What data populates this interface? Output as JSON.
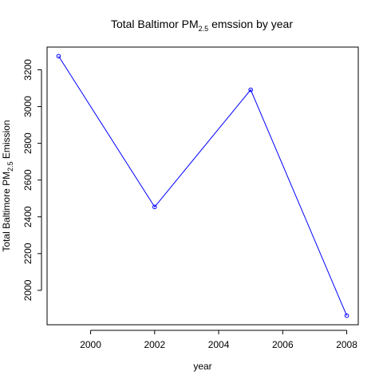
{
  "chart_data": {
    "type": "line",
    "title": {
      "prefix": "Total Baltimor PM",
      "subscript": "2.5",
      "suffix": " emssion by year"
    },
    "xlabel": "year",
    "ylabel": {
      "prefix": "Total Baltimore PM",
      "subscript": "2.5",
      "suffix": " Emission"
    },
    "x": [
      1999,
      2002,
      2005,
      2008
    ],
    "series": [
      {
        "values": [
          3274.18,
          2453.92,
          3091.35,
          1862.28
        ]
      }
    ],
    "xlim": [
      1998.64,
      2008.36
    ],
    "ylim": [
      1812.8,
      3323.7
    ],
    "x_ticks": [
      2000,
      2002,
      2004,
      2006,
      2008
    ],
    "y_ticks": [
      2000,
      2200,
      2400,
      2600,
      2800,
      3000,
      3200
    ],
    "grid": false,
    "legend": "none",
    "line_color": "#0000ff",
    "point_style": "open-circle"
  }
}
